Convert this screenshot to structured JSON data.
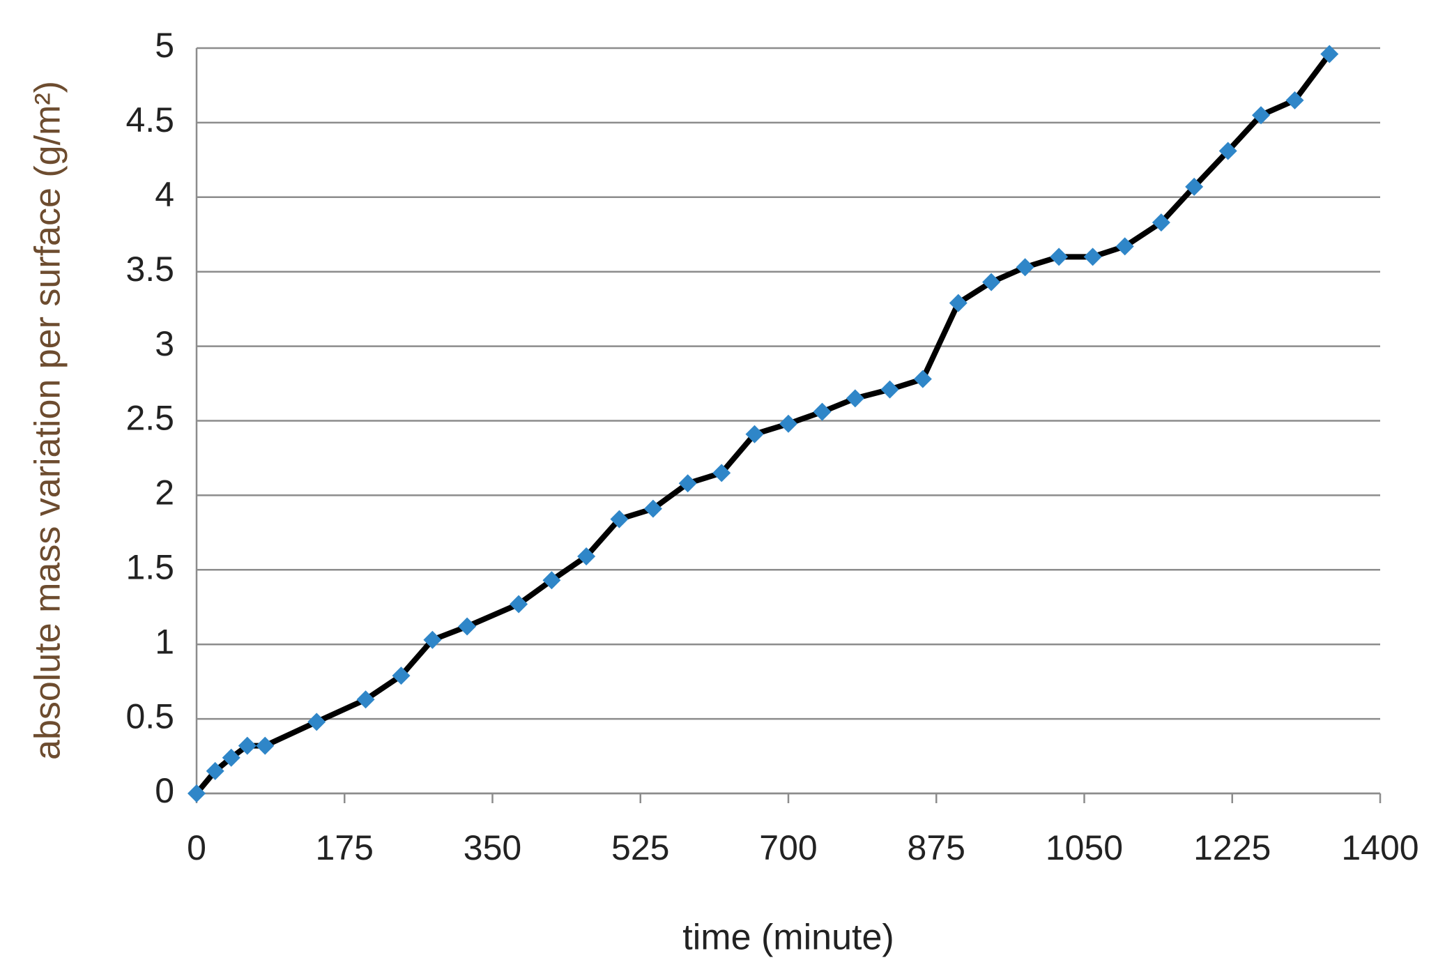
{
  "chart_data": {
    "type": "line",
    "x_label": "time (minute)",
    "y_label": "absolute mass variation per surface (g/m²)",
    "x": [
      0,
      22,
      41,
      60,
      81,
      142,
      200,
      242,
      279,
      320,
      381,
      420,
      461,
      500,
      540,
      581,
      621,
      660,
      700,
      740,
      779,
      820,
      859,
      901,
      940,
      980,
      1020,
      1060,
      1098,
      1141,
      1180,
      1220,
      1259,
      1299,
      1340
    ],
    "values": [
      0,
      0.15,
      0.24,
      0.32,
      0.32,
      0.48,
      0.63,
      0.79,
      1.03,
      1.12,
      1.27,
      1.43,
      1.59,
      1.84,
      1.91,
      2.08,
      2.15,
      2.41,
      2.48,
      2.56,
      2.65,
      2.71,
      2.78,
      3.29,
      3.43,
      3.53,
      3.6,
      3.6,
      3.67,
      3.83,
      4.07,
      4.31,
      4.55,
      4.65,
      4.96
    ],
    "line_color": "#000000",
    "marker_color": "#2f86c8",
    "xlim": [
      0,
      1400
    ],
    "xticks": [
      0,
      175,
      350,
      525,
      700,
      875,
      1050,
      1225,
      1400
    ],
    "ylim": [
      0,
      5
    ],
    "yticks": [
      0,
      0.5,
      1,
      1.5,
      2,
      2.5,
      3,
      3.5,
      4,
      4.5,
      5
    ],
    "grid": true
  }
}
